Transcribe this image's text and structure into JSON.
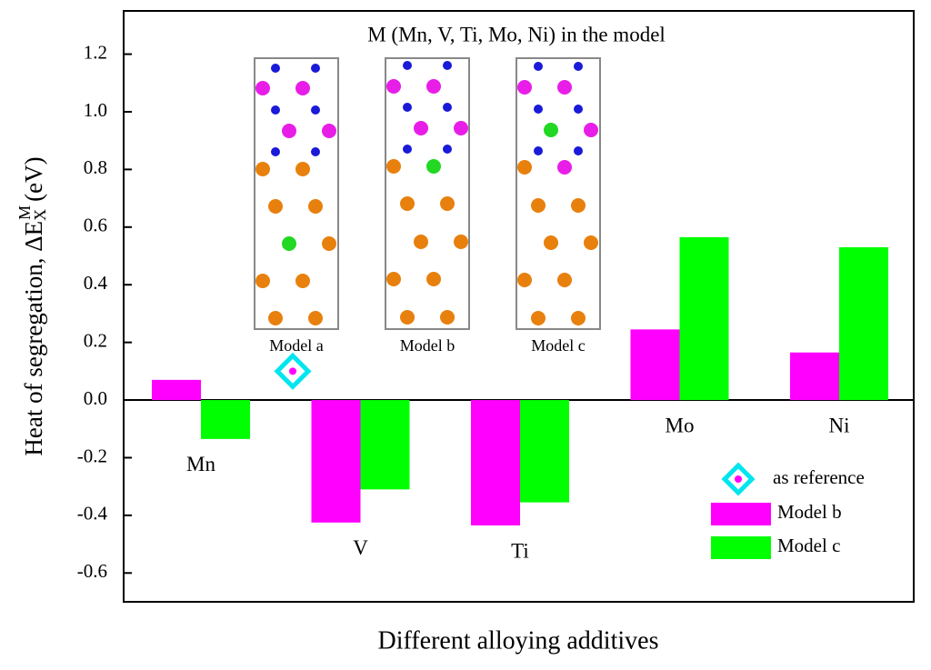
{
  "chart_data": {
    "type": "bar",
    "ylabel": "Heat of segregation, ΔE",
    "ylabel_sub": "X",
    "ylabel_sup": "M",
    "ylabel_unit": "(eV)",
    "xlabel": "Different alloying additives",
    "categories": [
      "Mn",
      "V",
      "Ti",
      "Mo",
      "Ni"
    ],
    "series": [
      {
        "name": "Model b",
        "color": "#ff00ff",
        "values": [
          0.07,
          -0.425,
          -0.435,
          0.245,
          0.165
        ]
      },
      {
        "name": "Model c",
        "color": "#00ff00",
        "values": [
          -0.135,
          -0.31,
          -0.355,
          0.565,
          0.53
        ]
      }
    ],
    "reference": {
      "name": "as reference",
      "value": 0.1,
      "color": "#00e5ee"
    },
    "ylim": [
      -0.7,
      1.35
    ],
    "yticks": [
      -0.6,
      -0.4,
      -0.2,
      {
        "value": 0,
        "label": "0.0"
      },
      0.2,
      0.4,
      0.6,
      0.8,
      {
        "value": 1,
        "label": "1.0"
      },
      1.2
    ],
    "inset": {
      "title": "M (Mn, V, Ti, Mo, Ni) in the model",
      "labels": [
        "Model a",
        "Model b",
        "Model c"
      ]
    },
    "legend": "lower right"
  }
}
